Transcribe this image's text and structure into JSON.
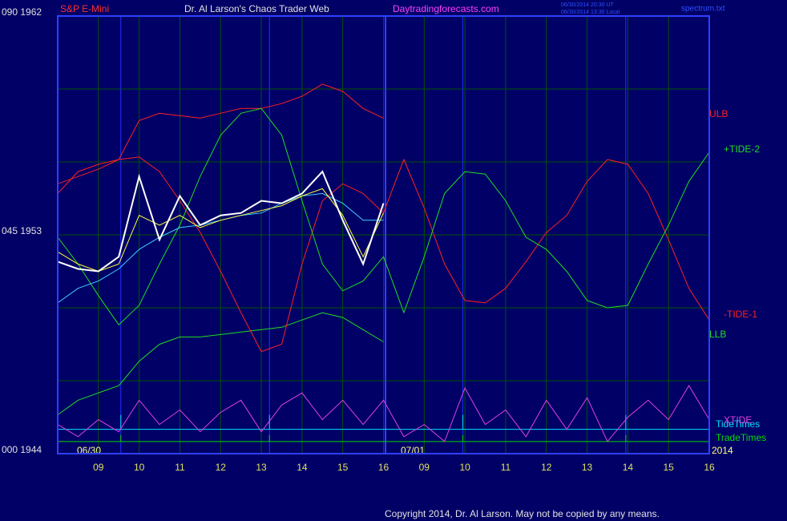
{
  "chart_data": {
    "type": "line",
    "title": "Dr. Al Larson's Chaos Trader Web",
    "instrument": "S&P E-Mini",
    "website": "Daytradingforecasts.com",
    "timestamps": [
      "06/30/2014 20:30 UT",
      "06/30/2014 13:30 Local"
    ],
    "file": "spectrum.txt",
    "copyright": "Copyright 2014, Dr. Al Larson. May not be copied by any means.",
    "date_labels": [
      "06/30",
      "07/01",
      "2014"
    ],
    "x": [
      0,
      0.5,
      1,
      1.5,
      2,
      2.5,
      3,
      3.5,
      4,
      4.5,
      5,
      5.5,
      6,
      6.5,
      7,
      7.5,
      8,
      8.5,
      9,
      9.5,
      10,
      10.5,
      11,
      11.5,
      12,
      12.5,
      13,
      13.5,
      14,
      14.5,
      15,
      15.5,
      16
    ],
    "xlim": [
      0,
      16
    ],
    "xticks": [
      {
        "value": 1,
        "label": "09"
      },
      {
        "value": 2,
        "label": "10"
      },
      {
        "value": 3,
        "label": "11"
      },
      {
        "value": 4,
        "label": "12"
      },
      {
        "value": 5,
        "label": "13"
      },
      {
        "value": 6,
        "label": "14"
      },
      {
        "value": 7,
        "label": "15"
      },
      {
        "value": 8,
        "label": "16"
      },
      {
        "value": 9,
        "label": "09"
      },
      {
        "value": 10,
        "label": "10"
      },
      {
        "value": 11,
        "label": "11"
      },
      {
        "value": 12,
        "label": "12"
      },
      {
        "value": 13,
        "label": "13"
      },
      {
        "value": 14,
        "label": "14"
      },
      {
        "value": 15,
        "label": "15"
      },
      {
        "value": 16,
        "label": "16"
      }
    ],
    "ylim": [
      1944,
      1962
    ],
    "yticks": [
      {
        "value": 1962,
        "label": "090  1962"
      },
      {
        "value": 1953,
        "label": "045  1953"
      },
      {
        "value": 1944,
        "label": "000  1944"
      }
    ],
    "ygrid": [
      1947,
      1950,
      1956,
      1959
    ],
    "grid": true,
    "tide_times": [
      1.55,
      5.2,
      9.95,
      13.95
    ],
    "now_x": 8.05,
    "reference_lines": [
      {
        "name": "TideTimes",
        "color": "#00e0ff",
        "value": 1945.0
      },
      {
        "name": "TradeTimes",
        "color": "#00dd00",
        "value": 1944.5
      }
    ],
    "series": [
      {
        "name": "ULB",
        "color": "#ff2020",
        "values": [
          1954.7,
          1955.6,
          1955.9,
          1956.1,
          1957.7,
          1958.0,
          1957.9,
          1957.8,
          1958.0,
          1958.2,
          1958.2,
          1958.4,
          1958.7,
          1959.2,
          1958.9,
          1958.2,
          1957.8,
          null,
          null,
          null,
          null,
          null,
          null,
          null,
          null,
          null,
          null,
          null,
          null,
          null,
          null,
          null,
          null
        ]
      },
      {
        "name": "LLB",
        "color": "#20dd20",
        "values": [
          1945.6,
          1946.2,
          1946.5,
          1946.8,
          1947.8,
          1948.5,
          1948.8,
          1948.8,
          1948.9,
          1949.0,
          1949.1,
          1949.2,
          1949.5,
          1949.8,
          1949.6,
          1949.1,
          1948.6,
          null,
          null,
          null,
          null,
          null,
          null,
          null,
          null,
          null,
          null,
          null,
          null,
          null,
          null,
          null,
          null
        ]
      },
      {
        "name": "-TIDE-1",
        "color": "#ff2020",
        "values": [
          1955.1,
          1955.4,
          1955.7,
          1956.1,
          1956.2,
          1955.6,
          1954.4,
          1953.1,
          1951.5,
          1949.8,
          1948.2,
          1948.5,
          1951.8,
          1954.4,
          1955.1,
          1954.7,
          1953.9,
          1956.1,
          1954.1,
          1951.8,
          1950.3,
          1950.2,
          1950.8,
          1951.9,
          1953.1,
          1953.8,
          1955.2,
          1956.1,
          1955.9,
          1954.7,
          1952.8,
          1950.8,
          1949.5
        ]
      },
      {
        "name": "+TIDE-2",
        "color": "#20dd20",
        "values": [
          1952.9,
          1951.8,
          1950.5,
          1949.3,
          1950.1,
          1951.8,
          1953.4,
          1955.4,
          1957.1,
          1958.0,
          1958.2,
          1957.1,
          1954.4,
          1951.8,
          1950.7,
          1951.1,
          1952.1,
          1949.8,
          1952.1,
          1954.7,
          1955.6,
          1955.5,
          1954.4,
          1952.9,
          1952.4,
          1951.5,
          1950.3,
          1950.0,
          1950.1,
          1951.8,
          1953.4,
          1955.2,
          1956.4
        ]
      },
      {
        "name": "XTIDE",
        "color": "#e040e0",
        "values": [
          1945.2,
          1944.7,
          1945.4,
          1944.9,
          1946.2,
          1945.2,
          1945.8,
          1944.9,
          1945.7,
          1946.2,
          1944.9,
          1946.0,
          1946.5,
          1945.4,
          1946.2,
          1945.2,
          1946.2,
          1944.7,
          1945.2,
          1944.5,
          1946.7,
          1945.2,
          1945.8,
          1944.7,
          1946.2,
          1945.0,
          1946.3,
          1944.5,
          1945.5,
          1946.2,
          1945.4,
          1946.8,
          1945.4
        ]
      },
      {
        "color": "#40d0ff",
        "values": [
          1950.2,
          1950.8,
          1951.1,
          1951.6,
          1952.4,
          1952.9,
          1953.3,
          1953.4,
          1953.6,
          1953.8,
          1953.9,
          1954.3,
          1954.6,
          1954.7,
          1954.3,
          1953.6,
          1953.6,
          null,
          null,
          null,
          null,
          null,
          null,
          null,
          null,
          null,
          null,
          null,
          null,
          null,
          null,
          null,
          null
        ]
      },
      {
        "color": "#ffff40",
        "values": [
          1952.3,
          1951.8,
          1951.5,
          1951.8,
          1953.8,
          1953.4,
          1953.8,
          1953.3,
          1953.6,
          1953.8,
          1954.0,
          1954.2,
          1954.6,
          1954.9,
          1953.8,
          1952.1,
          1953.9,
          null,
          null,
          null,
          null,
          null,
          null,
          null,
          null,
          null,
          null,
          null,
          null,
          null,
          null,
          null,
          null
        ]
      },
      {
        "color": "#ffffff",
        "values": [
          1951.9,
          1951.6,
          1951.5,
          1952.1,
          1955.4,
          1952.8,
          1954.6,
          1953.4,
          1953.8,
          1953.9,
          1954.4,
          1954.3,
          1954.7,
          1955.6,
          1953.6,
          1951.8,
          1954.3,
          null,
          null,
          null,
          null,
          null,
          null,
          null,
          null,
          null,
          null,
          null,
          null,
          null,
          null,
          null,
          null
        ]
      }
    ]
  }
}
